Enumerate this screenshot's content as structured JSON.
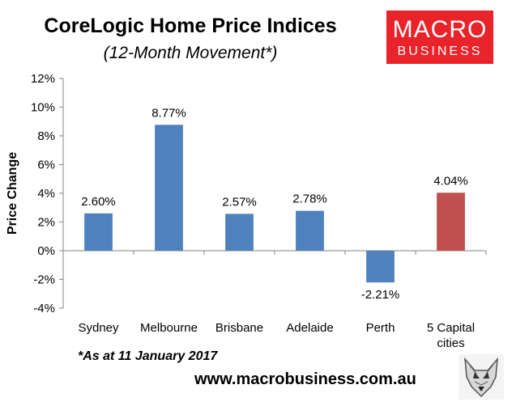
{
  "header": {
    "title": "CoreLogic Home Price Indices",
    "subtitle": "(12-Month Movement*)"
  },
  "logo": {
    "line1": "MACRO",
    "line2": "BUSINESS",
    "bg_color": "#e8232a",
    "icon": "wolf-head-icon"
  },
  "footer": {
    "note": "*As at 11 January 2017",
    "url": "www.macrobusiness.com.au"
  },
  "chart_data": {
    "type": "bar",
    "title": "CoreLogic Home Price Indices",
    "subtitle": "(12-Month Movement*)",
    "xlabel": "",
    "ylabel": "Price Change",
    "ylim": [
      -4,
      12
    ],
    "yticks": [
      12,
      10,
      8,
      6,
      4,
      2,
      0,
      -2,
      -4
    ],
    "ytick_labels": [
      "12%",
      "10%",
      "8%",
      "6%",
      "4%",
      "2%",
      "0%",
      "-2%",
      "-4%"
    ],
    "categories": [
      [
        "Sydney"
      ],
      [
        "Melbourne"
      ],
      [
        "Brisbane"
      ],
      [
        "Adelaide"
      ],
      [
        "Perth"
      ],
      [
        "5 Capital",
        "cities"
      ]
    ],
    "values": [
      2.6,
      8.77,
      2.57,
      2.78,
      -2.21,
      4.04
    ],
    "data_labels": [
      "2.60%",
      "8.77%",
      "2.57%",
      "2.78%",
      "-2.21%",
      "4.04%"
    ],
    "colors": [
      "#4f81bd",
      "#4f81bd",
      "#4f81bd",
      "#4f81bd",
      "#4f81bd",
      "#c0504d"
    ],
    "grid": false,
    "legend": "none"
  }
}
